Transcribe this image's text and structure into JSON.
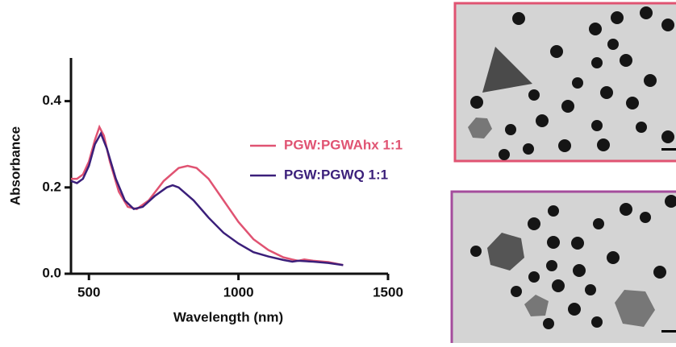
{
  "chart_data": {
    "type": "line",
    "xlabel": "Wavelength (nm)",
    "ylabel": "Absorbance",
    "xlim": [
      440,
      1500
    ],
    "ylim": [
      0,
      0.5
    ],
    "xticks": [
      500,
      1000,
      1500
    ],
    "yticks": [
      {
        "value": 0,
        "label": "0.0"
      },
      {
        "value": 0.2,
        "label": "0.2"
      },
      {
        "value": 0.4,
        "label": "0.4"
      }
    ],
    "series": [
      {
        "name": "PGW:PGWAhx 1:1",
        "color": "#e05372",
        "x": [
          440,
          460,
          480,
          500,
          520,
          535,
          550,
          570,
          600,
          630,
          660,
          700,
          750,
          800,
          830,
          860,
          900,
          950,
          1000,
          1050,
          1100,
          1150,
          1180,
          1200,
          1220,
          1250,
          1300,
          1350
        ],
        "values": [
          0.22,
          0.22,
          0.23,
          0.26,
          0.31,
          0.34,
          0.32,
          0.26,
          0.19,
          0.155,
          0.15,
          0.17,
          0.215,
          0.245,
          0.25,
          0.245,
          0.22,
          0.17,
          0.12,
          0.08,
          0.055,
          0.038,
          0.033,
          0.03,
          0.033,
          0.03,
          0.027,
          0.02
        ]
      },
      {
        "name": "PGW:PGWQ 1:1",
        "color": "#3b1f7a",
        "x": [
          440,
          460,
          480,
          500,
          520,
          540,
          560,
          590,
          620,
          650,
          680,
          720,
          760,
          780,
          800,
          850,
          900,
          950,
          1000,
          1050,
          1100,
          1150,
          1180,
          1200,
          1250,
          1300,
          1350
        ],
        "values": [
          0.215,
          0.21,
          0.22,
          0.25,
          0.3,
          0.325,
          0.29,
          0.22,
          0.17,
          0.15,
          0.155,
          0.18,
          0.2,
          0.205,
          0.2,
          0.17,
          0.13,
          0.095,
          0.07,
          0.05,
          0.04,
          0.032,
          0.028,
          0.03,
          0.028,
          0.025,
          0.02
        ]
      }
    ]
  }
}
